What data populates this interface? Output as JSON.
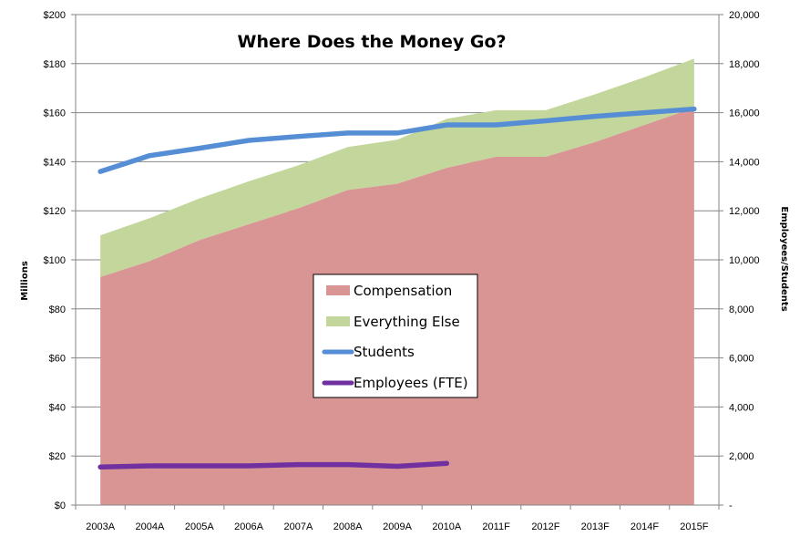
{
  "chart_data": {
    "type": "area",
    "title": "Where Does the Money Go?",
    "categories": [
      "2003A",
      "2004A",
      "2005A",
      "2006A",
      "2007A",
      "2008A",
      "2009A",
      "2010A",
      "2011F",
      "2012F",
      "2013F",
      "2014F",
      "2015F"
    ],
    "left_axis": {
      "label": "Millions",
      "ylim": [
        0,
        200
      ],
      "ticks": [
        0,
        20,
        40,
        60,
        80,
        100,
        120,
        140,
        160,
        180,
        200
      ],
      "tick_labels": [
        "$0",
        "$20",
        "$40",
        "$60",
        "$80",
        "$100",
        "$120",
        "$140",
        "$160",
        "$180",
        "$200"
      ]
    },
    "right_axis": {
      "label": "Employees/Students",
      "ylim": [
        0,
        20000
      ],
      "ticks": [
        0,
        2000,
        4000,
        6000,
        8000,
        10000,
        12000,
        14000,
        16000,
        18000,
        20000
      ],
      "tick_labels": [
        "-",
        "2,000",
        "4,000",
        "6,000",
        "8,000",
        "10,000",
        "12,000",
        "14,000",
        "16,000",
        "18,000",
        "20,000"
      ]
    },
    "grid": true,
    "legend_position": "center",
    "series": [
      {
        "name": "Compensation",
        "type": "stacked-area",
        "axis": "left",
        "color": "#d99594",
        "values": [
          93,
          99.5,
          108,
          114.5,
          121,
          128.5,
          131,
          137.5,
          142,
          142,
          148,
          155,
          162
        ]
      },
      {
        "name": "Everything Else",
        "type": "stacked-area",
        "axis": "left",
        "color": "#c3d69b",
        "values": [
          17,
          17.5,
          17,
          17.5,
          17.5,
          17.5,
          18,
          20,
          19,
          19,
          19.5,
          19.5,
          20
        ]
      },
      {
        "name": "Students",
        "type": "line",
        "axis": "right",
        "color": "#558ed5",
        "values": [
          13600,
          14250,
          14550,
          14870,
          15030,
          15170,
          15170,
          15500,
          15500,
          15670,
          15850,
          16000,
          16150
        ]
      },
      {
        "name": "Employees (FTE)",
        "type": "line",
        "axis": "right",
        "color": "#7030a0",
        "values": [
          1550,
          1600,
          1600,
          1600,
          1650,
          1650,
          1580,
          1700,
          null,
          null,
          null,
          null,
          null
        ]
      }
    ]
  }
}
